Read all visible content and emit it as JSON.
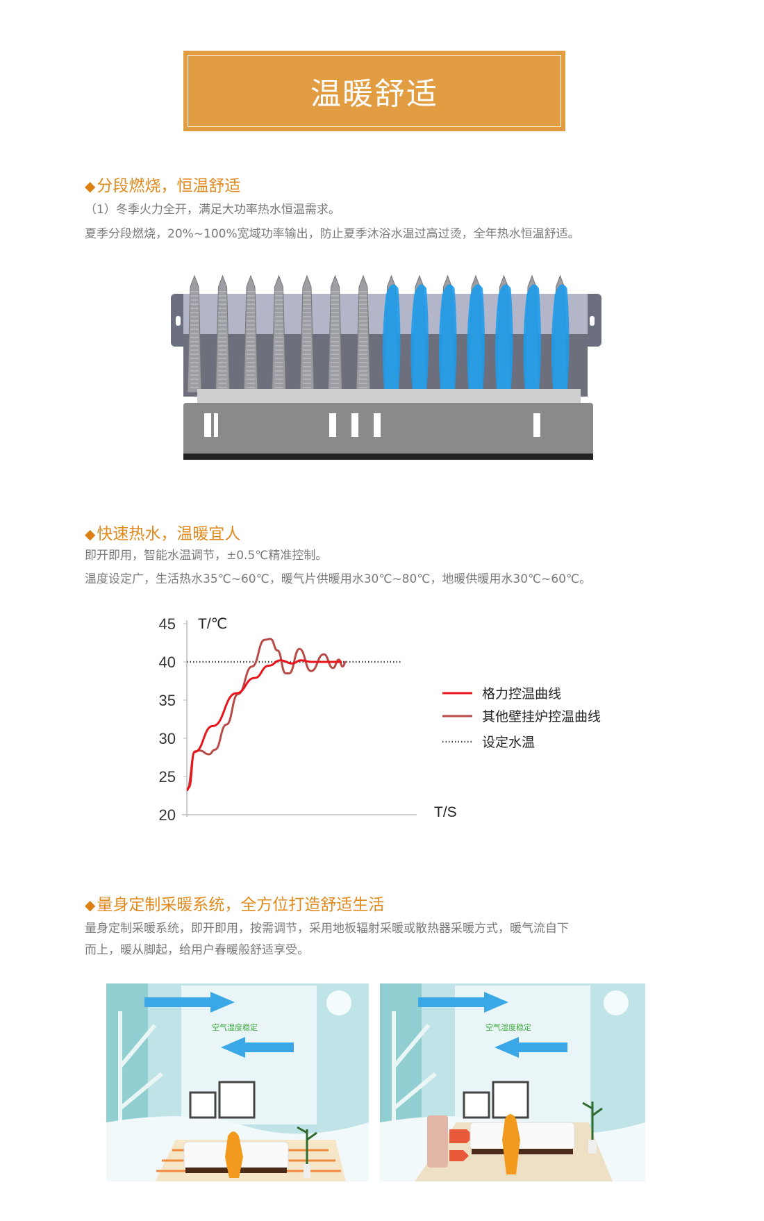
{
  "banner": {
    "title": "温暖舒适",
    "color": "#E29C42"
  },
  "sections": [
    {
      "heading": "分段燃烧，恒温舒适",
      "lines": [
        "（1）冬季火力全开，满足大功率热水恒温需求。",
        "夏季分段燃烧，20%~100%宽域功率输出，防止夏季沐浴水温过高过烫，全年热水恒温舒适。"
      ]
    },
    {
      "heading": "快速热水，温暖宜人",
      "lines": [
        "即开即用，智能水温调节，±0.5℃精准控制。",
        "温度设定广，生活热水35℃~60℃，暖气片供暖用水30℃~80℃，地暖供暖用水30℃~60℃。"
      ]
    },
    {
      "heading": "量身定制采暖系统，全方位打造舒适生活",
      "lines": [
        "量身定制采暖系统，即开即用，按需调节，采用地板辐射采暖或散热器采暖方式，暖气流自下",
        "而上，暖从脚起，给用户春暖般舒适享受。"
      ]
    }
  ],
  "bullet_icon": "diamond-icon",
  "heading_color": "#E08A1E",
  "burner_image": {
    "burners_off": 7,
    "burners_lit": 7,
    "flame_color": "#1E9BEA"
  },
  "chart_data": {
    "type": "line",
    "ylabel": "T/℃",
    "xlabel": "T/S",
    "ylim": [
      20,
      45
    ],
    "yticks": [
      "45",
      "40",
      "35",
      "30",
      "25",
      "20"
    ],
    "grid": false,
    "legend_position": "right",
    "series": [
      {
        "name": "格力控温曲线",
        "color": "#E8141B",
        "style": "solid",
        "points": [
          [
            0,
            23.2
          ],
          [
            1,
            23.6
          ],
          [
            3.5,
            28.2
          ],
          [
            12,
            31.6
          ],
          [
            23,
            35.9
          ],
          [
            31.5,
            37.9
          ],
          [
            38,
            39.5
          ],
          [
            43.5,
            40.2
          ],
          [
            48.9,
            39.8
          ],
          [
            53,
            40.2
          ],
          [
            58,
            40
          ],
          [
            72,
            40
          ]
        ]
      },
      {
        "name": "其他壁挂炉控温曲线",
        "color": "#B84A48",
        "style": "solid",
        "points": [
          [
            0,
            23.2
          ],
          [
            3.9,
            28.3
          ],
          [
            6,
            28.4
          ],
          [
            10.3,
            27.9
          ],
          [
            13,
            28.5
          ],
          [
            18.4,
            31.8
          ],
          [
            23.8,
            35.8
          ],
          [
            30.3,
            39.4
          ],
          [
            36.2,
            42.9
          ],
          [
            38.9,
            43
          ],
          [
            42.1,
            41.5
          ],
          [
            45.9,
            38.5
          ],
          [
            47.5,
            38.5
          ],
          [
            52.3,
            41.7
          ],
          [
            57.7,
            38.8
          ],
          [
            63.6,
            41
          ],
          [
            67.9,
            39.2
          ],
          [
            70.6,
            40.3
          ],
          [
            72.3,
            39.4
          ],
          [
            73.9,
            40
          ]
        ]
      },
      {
        "name": "设定水温",
        "color": "#444444",
        "style": "dotted",
        "points": [
          [
            0,
            40
          ],
          [
            100,
            40
          ]
        ]
      }
    ]
  },
  "scene_images": [
    {
      "caption": "空气湿度稳定",
      "heating": "floor-heating"
    },
    {
      "caption": "空气湿度稳定",
      "heating": "radiator"
    }
  ]
}
